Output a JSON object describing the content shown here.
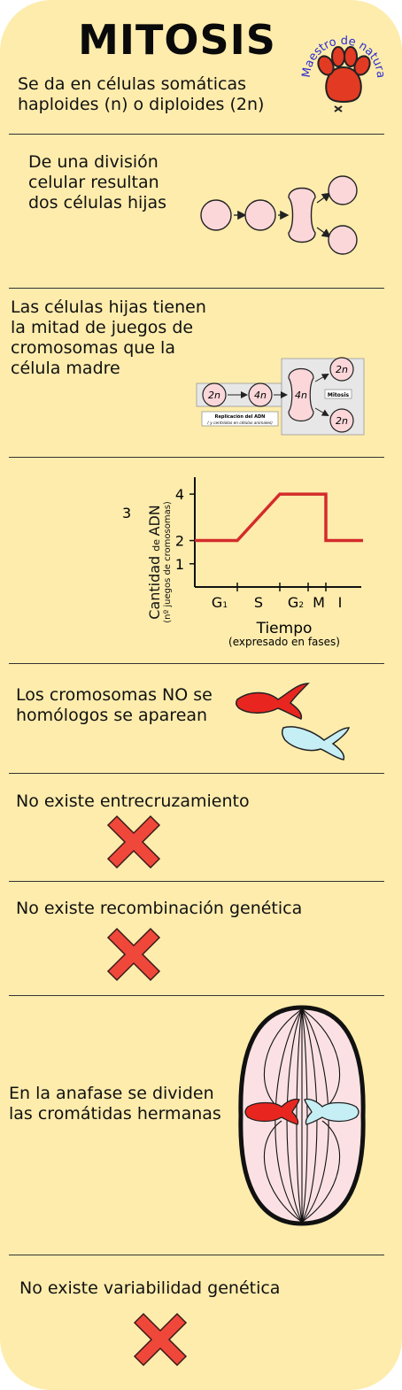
{
  "title": "MITOSIS",
  "logo": {
    "text": "Maestro de naturales",
    "icon": "paw-icon"
  },
  "sections": {
    "s1": {
      "text": "Se da en células somáticas haploides (n)  o diploides (2n)"
    },
    "s2": {
      "text": "De una división celular resultan dos células hijas"
    },
    "s3": {
      "text": "Las células hijas tienen la mitad de juegos de cromosomas que la célula madre",
      "labels": {
        "cell1": "2n",
        "cell2": "4n",
        "cell3": "4n",
        "daughter1": "2n",
        "daughter2": "2n",
        "mitosis": "Mitosis",
        "replication": "Replicación del ADN",
        "replication_note": "( y centriolos en células animales)"
      }
    },
    "s5": {
      "text": "Los cromosomas NO se homólogos se aparean"
    },
    "s6": {
      "text": "No existe entrecruzamiento"
    },
    "s7": {
      "text": "No existe recombinación genética"
    },
    "s8": {
      "text": "En la anafase  se dividen las cromátidas hermanas"
    },
    "s9": {
      "text": "No existe variabilidad genética"
    }
  },
  "chart_data": {
    "type": "line",
    "ylabel_main": "Cantidad de ADN",
    "ylabel_de": "de",
    "ylabel_sub": "(nº juegos de cromosomas)",
    "xlabel": "Tiempo",
    "xlabel_sub": "(expresado en fases)",
    "categories": [
      "G1",
      "S",
      "G2",
      "M",
      "I"
    ],
    "yticks": [
      1,
      2,
      3,
      4
    ],
    "ylim": [
      0,
      4.5
    ],
    "stray_label": "3",
    "series": [
      {
        "x": [
          "start",
          "G1",
          "S",
          "G2",
          "M",
          "M",
          "end"
        ],
        "values": [
          2,
          2,
          2,
          4,
          4,
          2,
          2
        ]
      }
    ],
    "line_color": "#d42b2b"
  },
  "colors": {
    "background": "#fdecac",
    "cell_fill": "#fbd7da",
    "red": "#e8261f",
    "cyan": "#c6eef5",
    "cross": "#f0473b"
  }
}
